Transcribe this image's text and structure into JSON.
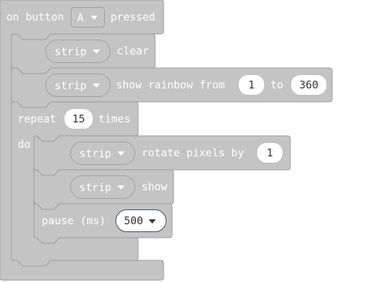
{
  "event": {
    "prefix": "on button",
    "button_value": "A",
    "suffix": "pressed"
  },
  "blocks": {
    "clear": {
      "strip_label": "strip",
      "action_label": "clear"
    },
    "rainbow": {
      "strip_label": "strip",
      "text": "show rainbow from",
      "from_value": "1",
      "to_label": "to",
      "to_value": "360"
    },
    "repeat": {
      "label": "repeat",
      "count": "15",
      "times_label": "times",
      "do_label": "do"
    },
    "rotate": {
      "strip_label": "strip",
      "text": "rotate pixels by",
      "value": "1"
    },
    "show": {
      "strip_label": "strip",
      "action_label": "show"
    },
    "pause": {
      "label": "pause (ms)",
      "value": "500"
    }
  },
  "colors": {
    "block_fill": "#c4c4c4",
    "block_border": "#9c9c9c",
    "text": "#ffffff",
    "field_bg": "#ffffff",
    "field_text": "#333333",
    "dropdown_border": "#2a4d7a"
  }
}
